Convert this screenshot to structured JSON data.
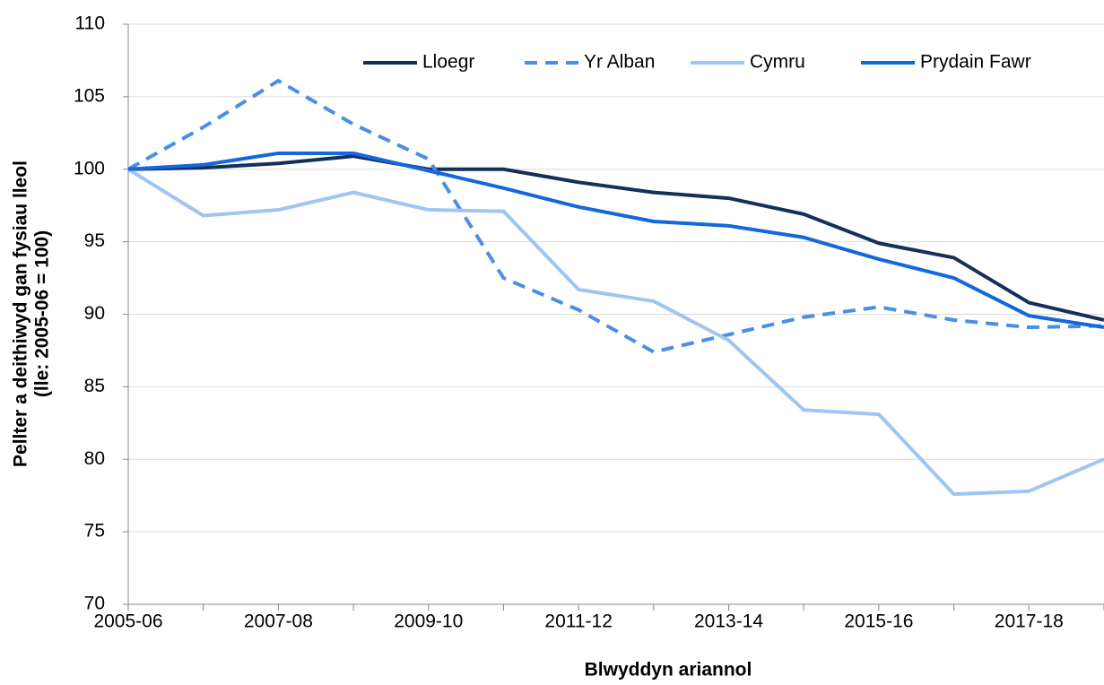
{
  "chart_data": {
    "type": "line",
    "ylabel": [
      "Pellter a deithiwyd gan fysiau lleol",
      "(lle: 2005-06 = 100)"
    ],
    "xlabel": "Blwyddyn ariannol",
    "categories": [
      "2005-06",
      null,
      "2007-08",
      null,
      "2009-10",
      null,
      "2011-12",
      null,
      "2013-14",
      null,
      "2015-16",
      null,
      "2017-18",
      null
    ],
    "series": [
      {
        "name": "Lloegr",
        "color": "#14305a",
        "dashed": false,
        "values": [
          100,
          100.1,
          100.4,
          100.9,
          100,
          100,
          99.1,
          98.4,
          98.0,
          96.9,
          94.9,
          93.9,
          90.8,
          89.6
        ]
      },
      {
        "name": "Yr Alban",
        "color": "#4a8fe7",
        "dashed": true,
        "values": [
          100,
          102.9,
          106.1,
          103.1,
          100.7,
          92.5,
          90.3,
          87.4,
          88.6,
          89.8,
          90.5,
          89.6,
          89.1,
          89.2
        ]
      },
      {
        "name": "Cymru",
        "color": "#9fc5f2",
        "dashed": false,
        "values": [
          100,
          96.8,
          97.2,
          98.4,
          97.2,
          97.1,
          91.7,
          90.9,
          88.2,
          83.4,
          83.1,
          77.6,
          77.8,
          80.0
        ]
      },
      {
        "name": "Prydain Fawr",
        "color": "#1468dc",
        "dashed": false,
        "values": [
          100,
          100.3,
          101.1,
          101.1,
          99.9,
          98.7,
          97.4,
          96.4,
          96.1,
          95.3,
          93.8,
          92.5,
          89.9,
          89.1
        ]
      }
    ],
    "ylim": [
      70,
      110
    ],
    "yticks": [
      70,
      75,
      80,
      85,
      90,
      95,
      100,
      105,
      110
    ],
    "grid": true,
    "legend": "top-right"
  }
}
